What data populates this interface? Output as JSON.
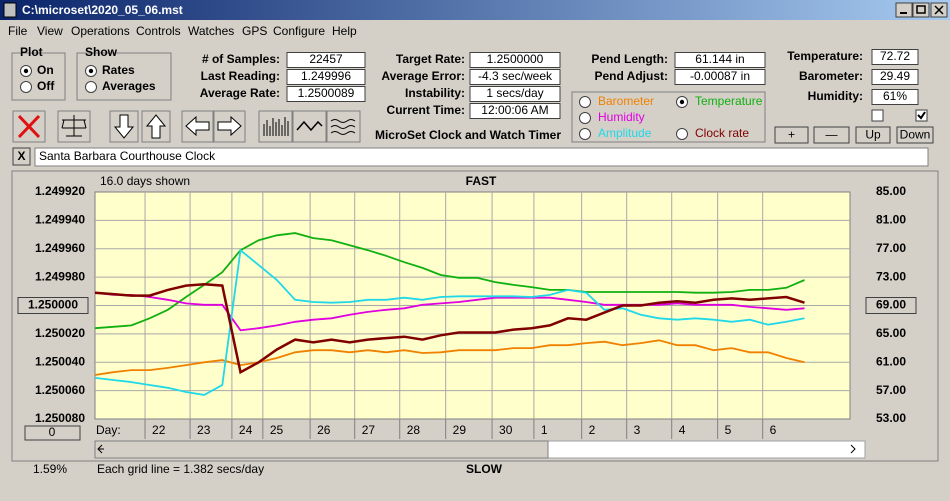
{
  "window": {
    "title": "C:\\microset\\2020_05_06.mst"
  },
  "menu": [
    "File",
    "View",
    "Operations",
    "Controls",
    "Watches",
    "GPS",
    "Configure",
    "Help"
  ],
  "plot": {
    "label": "Plot",
    "options": [
      "On",
      "Off"
    ],
    "selected": 0
  },
  "show": {
    "label": "Show",
    "options": [
      "Rates",
      "Averages"
    ],
    "selected": 0
  },
  "stats1": [
    {
      "label": "# of Samples:",
      "value": "22457"
    },
    {
      "label": "Last Reading:",
      "value": "1.249996"
    },
    {
      "label": "Average Rate:",
      "value": "1.2500089"
    }
  ],
  "stats2": [
    {
      "label": "Target Rate:",
      "value": "1.2500000"
    },
    {
      "label": "Average Error:",
      "value": "-4.3 sec/week"
    },
    {
      "label": "Instability:",
      "value": "1 secs/day"
    },
    {
      "label": "Current Time:",
      "value": "12:00:06 AM"
    }
  ],
  "app_title": "MicroSet Clock and Watch Timer",
  "pend": [
    {
      "label": "Pend Length:",
      "value": "61.144 in"
    },
    {
      "label": "Pend Adjust:",
      "value": "-0.00087 in"
    }
  ],
  "env": [
    {
      "label": "Temperature:",
      "value": "72.72"
    },
    {
      "label": "Barometer:",
      "value": "29.49"
    },
    {
      "label": "Humidity:",
      "value": "61%"
    }
  ],
  "checkboxes": [
    false,
    true
  ],
  "buttons": [
    "+",
    "—",
    "Up",
    "Down"
  ],
  "close_label": "X",
  "clock_name": "Santa Barbara Courthouse Clock",
  "percent": "1.59%",
  "chart_data": {
    "type": "line",
    "days_shown": "16.0 days shown",
    "top_label": "FAST",
    "bottom_label": "SLOW",
    "x_label": "Day:",
    "grid_note": "Each grid line = 1.382 secs/day",
    "scroll_button": "0",
    "selected_series": 1,
    "grid": true,
    "yreversed": true,
    "xlim": [
      0,
      16.6
    ],
    "xticks": [
      {
        "value": 1.1,
        "label": "22"
      },
      {
        "value": 2.09,
        "label": "23"
      },
      {
        "value": 3.01,
        "label": "24"
      },
      {
        "value": 3.69,
        "label": "25"
      },
      {
        "value": 4.73,
        "label": "26"
      },
      {
        "value": 5.71,
        "label": "27"
      },
      {
        "value": 6.7,
        "label": "28"
      },
      {
        "value": 7.71,
        "label": "29"
      },
      {
        "value": 8.73,
        "label": "30"
      },
      {
        "value": 9.65,
        "label": "1"
      },
      {
        "value": 10.7,
        "label": "2"
      },
      {
        "value": 11.69,
        "label": "3"
      },
      {
        "value": 12.68,
        "label": "4"
      },
      {
        "value": 13.69,
        "label": "5"
      },
      {
        "value": 14.68,
        "label": "6"
      }
    ],
    "ylim": [
      1.24992,
      1.25008
    ],
    "yticks": [
      {
        "value": 1.24992,
        "label": "1.249920"
      },
      {
        "value": 1.24994,
        "label": "1.249940"
      },
      {
        "value": 1.24996,
        "label": "1.249960"
      },
      {
        "value": 1.24998,
        "label": "1.249980"
      },
      {
        "value": 1.25,
        "label": "1.250000"
      },
      {
        "value": 1.25002,
        "label": "1.250020"
      },
      {
        "value": 1.25004,
        "label": "1.250040"
      },
      {
        "value": 1.25006,
        "label": "1.250060"
      },
      {
        "value": 1.25008,
        "label": "1.250080"
      }
    ],
    "ybutton_tick": 4,
    "y2lim": [
      53,
      85
    ],
    "y2ticks": [
      {
        "value": 85,
        "label": "85.00"
      },
      {
        "value": 81,
        "label": "81.00"
      },
      {
        "value": 77,
        "label": "77.00"
      },
      {
        "value": 73,
        "label": "73.00"
      },
      {
        "value": 69,
        "label": "69.00"
      },
      {
        "value": 65,
        "label": "65.00"
      },
      {
        "value": 61,
        "label": "61.00"
      },
      {
        "value": 57,
        "label": "57.00"
      },
      {
        "value": 53,
        "label": "53.00"
      }
    ],
    "y2button_tick": 4,
    "x": [
      0,
      0.4,
      0.8,
      1.2,
      1.6,
      2,
      2.4,
      2.8,
      3.2,
      3.6,
      4,
      4.4,
      4.8,
      5.2,
      5.6,
      6,
      6.4,
      6.8,
      7.2,
      7.6,
      8,
      8.4,
      8.8,
      9.2,
      9.6,
      10,
      10.4,
      10.8,
      11.2,
      11.6,
      12,
      12.4,
      12.8,
      13.2,
      13.6,
      14,
      14.4,
      14.8,
      15.2,
      15.6
    ],
    "series": [
      {
        "name": "Barometer",
        "color": "#f08000",
        "axis": "y2",
        "values": [
          59.2,
          59.6,
          59.9,
          59.9,
          60.2,
          60.6,
          61.0,
          61.3,
          60.6,
          61.0,
          61.6,
          62.4,
          62.7,
          62.7,
          62.4,
          62.7,
          62.4,
          62.7,
          62.3,
          62.4,
          62.7,
          62.7,
          62.7,
          63.0,
          63.0,
          63.4,
          63.4,
          63.7,
          63.9,
          63.4,
          63.7,
          64.1,
          63.4,
          63.4,
          62.7,
          63.0,
          62.4,
          62.4,
          61.6,
          61.0
        ]
      },
      {
        "name": "Temperature",
        "color": "#10b010",
        "axis": "y2",
        "values": [
          65.8,
          66.0,
          66.2,
          67.2,
          68.4,
          70.2,
          71.9,
          73.7,
          76.8,
          78.2,
          78.9,
          79.2,
          78.5,
          78.2,
          77.5,
          76.8,
          76.0,
          75.1,
          74.3,
          73.3,
          72.9,
          72.9,
          72.3,
          71.9,
          71.6,
          71.2,
          71.2,
          70.9,
          70.9,
          70.9,
          70.9,
          70.9,
          70.9,
          70.8,
          70.8,
          70.9,
          71.2,
          71.2,
          71.5,
          72.6
        ]
      },
      {
        "name": "Humidity",
        "color": "#e000e0",
        "axis": "y2",
        "values": [
          70.8,
          70.5,
          70.5,
          70.2,
          69.8,
          69.3,
          69.1,
          69.1,
          65.5,
          65.8,
          66.2,
          66.7,
          67.0,
          67.2,
          67.7,
          68.1,
          68.4,
          68.6,
          69.1,
          69.3,
          69.5,
          69.8,
          70.1,
          70.1,
          70.1,
          70.1,
          69.8,
          69.5,
          69.1,
          69.1,
          69.1,
          69.1,
          69.3,
          69.1,
          69.1,
          69.1,
          68.8,
          68.6,
          68.4,
          68.6
        ]
      },
      {
        "name": "Amplitude",
        "color": "#20d8e8",
        "axis": "y2",
        "values": [
          58.8,
          58.5,
          58.2,
          57.8,
          57.4,
          56.8,
          56.4,
          57.8,
          76.8,
          74.7,
          72.6,
          69.8,
          69.5,
          69.4,
          69.5,
          69.8,
          69.8,
          70.1,
          69.8,
          70.2,
          70.3,
          70.3,
          70.3,
          70.3,
          70.2,
          70.5,
          71.2,
          70.8,
          68.4,
          68.6,
          67.7,
          67.2,
          67.0,
          67.2,
          67.0,
          66.7,
          67.0,
          66.3,
          66.7,
          67.2
        ]
      },
      {
        "name": "Clock rate",
        "color": "#800000",
        "axis": "y",
        "values": [
          1.249991,
          1.249992,
          1.249993,
          1.249993,
          1.249989,
          1.249986,
          1.249985,
          1.249986,
          1.250047,
          1.25004,
          1.250031,
          1.250024,
          1.250026,
          1.250024,
          1.250026,
          1.250024,
          1.250023,
          1.250022,
          1.250024,
          1.250021,
          1.250019,
          1.250019,
          1.250019,
          1.250017,
          1.250016,
          1.250014,
          1.250009,
          1.25001,
          1.250005,
          1.25,
          1.25,
          1.249998,
          1.249997,
          1.249998,
          1.249996,
          1.249995,
          1.249996,
          1.249995,
          1.249994,
          1.249998
        ]
      }
    ]
  }
}
